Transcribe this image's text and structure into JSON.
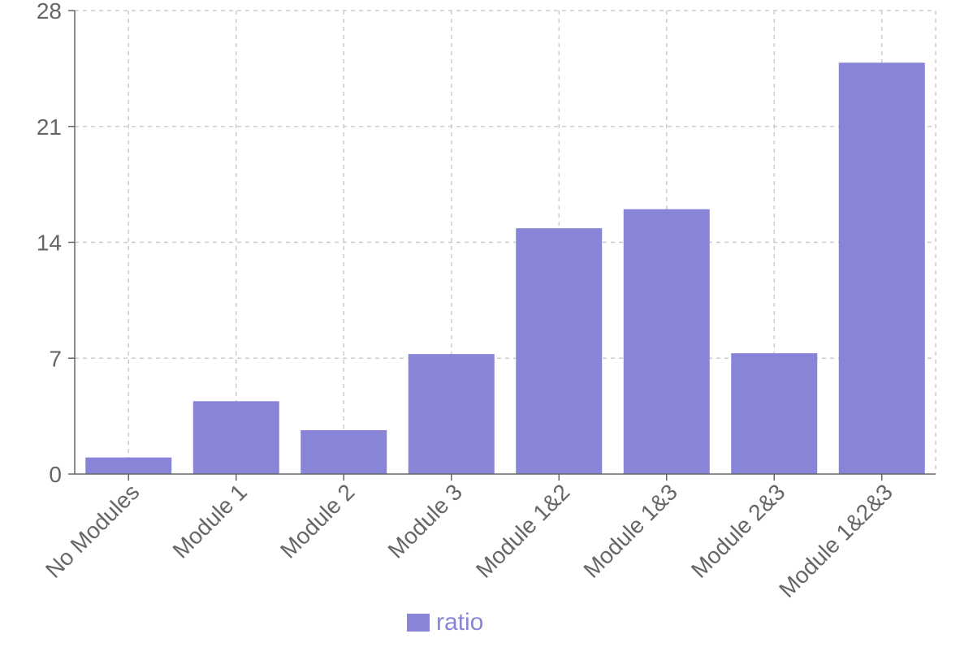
{
  "chart_data": {
    "type": "bar",
    "categories": [
      "No Modules",
      "Module 1",
      "Module 2",
      "Module 3",
      "Module 1&2",
      "Module 1&3",
      "Module 2&3",
      "Module 1&2&3"
    ],
    "series": [
      {
        "name": "ratio",
        "values": [
          1.0,
          4.4,
          2.65,
          7.25,
          14.85,
          16.0,
          7.3,
          24.85
        ]
      }
    ],
    "title": "",
    "xlabel": "",
    "ylabel": "",
    "ylim": [
      0,
      28
    ],
    "yticks": [
      "0",
      "7",
      "14",
      "21",
      "28"
    ],
    "grid": true,
    "legend_position": "bottom-center",
    "colors": {
      "bar": "#8884d8",
      "axis": "#666666",
      "grid": "#cccccc",
      "legend_text": "#8884d8"
    }
  }
}
